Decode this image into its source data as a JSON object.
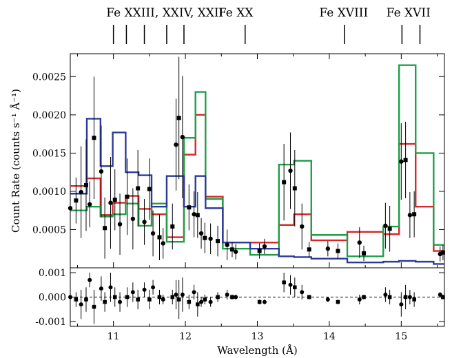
{
  "chart_data": [
    {
      "type": "line",
      "panel": "main",
      "xlabel": "Wavelength (Å)",
      "ylabel": "Count Rate (counts s⁻¹ Å⁻¹)",
      "xlim": [
        10.4,
        15.6
      ],
      "ylim": [
        0.0,
        0.0028
      ],
      "x_ticks": [
        "11",
        "12",
        "13",
        "14",
        "15"
      ],
      "x_tick_values": [
        11,
        12,
        13,
        14,
        15
      ],
      "y_ticks": [
        "0.0005",
        "0.0010",
        "0.0015",
        "0.0020",
        "0.0025"
      ],
      "y_tick_values": [
        0.0005,
        0.001,
        0.0015,
        0.002,
        0.0025
      ],
      "grid": false,
      "line_annotations": {
        "labels": [
          {
            "text": "Fe XXIII, XXIV, XXII",
            "x": 10.9
          },
          {
            "text": "Fe XX",
            "x": 12.7
          },
          {
            "text": "Fe XVIII",
            "x": 14.2
          },
          {
            "text": "Fe XVII",
            "x": 15.1
          }
        ],
        "marker_wavelengths": [
          11.0,
          11.18,
          11.43,
          11.74,
          11.98,
          12.83,
          14.21,
          15.01,
          15.26
        ]
      },
      "series": [
        {
          "color": "#d62728",
          "step_edges": [
            10.4,
            10.63,
            10.82,
            10.99,
            11.17,
            11.35,
            11.53,
            11.74,
            11.98,
            12.14,
            12.28,
            12.52,
            12.9,
            13.3,
            13.51,
            13.75,
            14.25,
            14.75,
            14.97,
            15.2,
            15.45,
            15.6
          ],
          "values": [
            0.00107,
            0.00117,
            0.00069,
            0.00085,
            0.00094,
            0.00077,
            0.0007,
            0.0004,
            0.00148,
            0.002,
            0.00093,
            0.00033,
            0.00033,
            0.00056,
            0.0007,
            0.00036,
            0.00047,
            0.00044,
            0.00162,
            0.0008,
            0.00022
          ]
        },
        {
          "color": "#1f9e48",
          "step_edges": [
            10.4,
            10.63,
            10.82,
            10.99,
            11.17,
            11.35,
            11.53,
            11.74,
            11.98,
            12.14,
            12.28,
            12.52,
            12.9,
            13.3,
            13.51,
            13.75,
            14.25,
            14.75,
            14.97,
            15.2,
            15.45,
            15.6
          ],
          "values": [
            0.00075,
            0.0008,
            0.00067,
            0.0007,
            0.00084,
            0.00055,
            0.00084,
            0.00034,
            0.0017,
            0.0023,
            0.0009,
            0.00025,
            0.00017,
            0.00135,
            0.0014,
            0.00043,
            0.00015,
            0.00054,
            0.00265,
            0.0015,
            0.0003
          ]
        },
        {
          "color": "#2b3a9a",
          "step_edges": [
            10.4,
            10.63,
            10.82,
            10.99,
            11.17,
            11.35,
            11.53,
            11.74,
            11.98,
            12.14,
            12.28,
            12.52,
            12.9,
            13.3,
            13.51,
            13.75,
            14.25,
            14.75,
            14.97,
            15.2,
            15.45,
            15.6
          ],
          "values": [
            0.00097,
            0.00195,
            0.00133,
            0.00177,
            0.00125,
            0.00121,
            0.0008,
            0.0012,
            0.0008,
            0.0012,
            0.00078,
            0.00033,
            0.00025,
            0.00015,
            0.00014,
            0.00012,
            7e-05,
            8e-05,
            9e-05,
            8e-05,
            5e-05
          ]
        }
      ],
      "data_points": {
        "x": [
          10.4,
          10.48,
          10.55,
          10.62,
          10.67,
          10.73,
          10.83,
          10.88,
          10.96,
          11.02,
          11.09,
          11.19,
          11.27,
          11.34,
          11.43,
          11.5,
          11.55,
          11.64,
          11.69,
          11.82,
          11.87,
          11.91,
          11.96,
          12.05,
          12.12,
          12.17,
          12.22,
          12.27,
          12.35,
          12.45,
          12.58,
          12.65,
          12.7,
          13.03,
          13.1,
          13.37,
          13.46,
          13.52,
          13.62,
          13.72,
          13.98,
          14.12,
          14.42,
          14.48,
          14.78,
          14.84,
          15.0,
          15.06,
          15.12,
          15.18,
          15.54,
          15.58
        ],
        "y": [
          0.00078,
          0.00088,
          0.00099,
          0.00108,
          0.00083,
          0.0017,
          0.00126,
          0.00052,
          0.00085,
          0.00089,
          0.00057,
          0.00093,
          0.00064,
          0.00104,
          0.0006,
          0.00103,
          0.00045,
          0.0004,
          0.00032,
          0.00054,
          0.00161,
          0.00196,
          0.00171,
          0.00079,
          0.0007,
          0.00069,
          0.00045,
          0.00039,
          0.00038,
          0.00035,
          0.0003,
          0.00024,
          0.00021,
          0.00022,
          0.00028,
          0.00112,
          0.00127,
          0.00104,
          0.00054,
          0.00024,
          0.00025,
          0.00022,
          0.00033,
          0.00019,
          0.00055,
          0.00051,
          0.00139,
          0.00141,
          0.00069,
          0.0007,
          0.00018,
          0.0002
        ],
        "yerr": [
          0.00025,
          0.0003,
          0.0006,
          0.0006,
          0.0003,
          0.0008,
          0.0006,
          0.0004,
          0.0006,
          0.0004,
          0.0004,
          0.0005,
          0.0004,
          0.0005,
          0.0003,
          0.0004,
          0.0003,
          0.0003,
          0.0002,
          0.0003,
          0.0006,
          0.0008,
          0.0008,
          0.0003,
          0.0003,
          0.0003,
          0.0002,
          0.0002,
          0.0002,
          0.0002,
          0.0002,
          0.0001,
          0.0001,
          0.0001,
          0.0001,
          0.0005,
          0.0005,
          0.0005,
          0.0003,
          0.0001,
          0.0001,
          0.0001,
          0.0002,
          0.0001,
          0.0003,
          0.0003,
          0.0005,
          0.0005,
          0.0003,
          0.0003,
          0.0001,
          0.0001
        ]
      }
    },
    {
      "type": "scatter",
      "panel": "residuals",
      "xlabel": "Wavelength (Å)",
      "xlim": [
        10.4,
        15.6
      ],
      "ylim": [
        -0.0012,
        0.0012
      ],
      "y_ticks": [
        "0.001",
        "0.000",
        "-0.001"
      ],
      "y_tick_values": [
        0.001,
        0.0,
        -0.001
      ],
      "reference_line": 0.0,
      "x": [
        10.4,
        10.48,
        10.55,
        10.62,
        10.67,
        10.73,
        10.83,
        10.88,
        10.96,
        11.02,
        11.09,
        11.19,
        11.27,
        11.34,
        11.43,
        11.5,
        11.55,
        11.64,
        11.69,
        11.82,
        11.87,
        11.91,
        11.96,
        12.05,
        12.12,
        12.17,
        12.22,
        12.27,
        12.35,
        12.45,
        12.58,
        12.65,
        12.7,
        13.03,
        13.1,
        13.37,
        13.46,
        13.52,
        13.62,
        13.72,
        13.98,
        14.12,
        14.42,
        14.48,
        14.78,
        14.84,
        15.0,
        15.06,
        15.12,
        15.18,
        15.54,
        15.58
      ],
      "y": [
        0.0,
        -0.0001,
        -0.0003,
        -0.0001,
        0.0007,
        -0.0004,
        0.00035,
        -0.0002,
        0.0004,
        0.0,
        -0.0002,
        0.0,
        0.0002,
        -0.0001,
        0.0003,
        -0.0001,
        0.0004,
        0.0,
        -0.0001,
        0.0,
        0.0001,
        -0.0001,
        0.0001,
        -0.0002,
        0.0002,
        -0.0003,
        -0.0002,
        -0.0001,
        -0.0002,
        0.0,
        0.0001,
        0.0,
        0.0,
        -0.0002,
        -0.0002,
        0.0006,
        0.0005,
        0.0004,
        0.0002,
        0.0,
        -0.0001,
        -0.0002,
        -0.0001,
        0.0,
        0.0001,
        0.0,
        -0.0003,
        0.0,
        0.0,
        -0.0001,
        0.0001,
        0.0
      ],
      "yerr": [
        0.0003,
        0.0003,
        0.0006,
        0.0005,
        0.0003,
        0.0007,
        0.0005,
        0.0004,
        0.0006,
        0.0004,
        0.0004,
        0.0004,
        0.0004,
        0.0004,
        0.0003,
        0.0004,
        0.0003,
        0.0003,
        0.0002,
        0.0003,
        0.0006,
        0.0008,
        0.0007,
        0.0003,
        0.0003,
        0.0005,
        0.0002,
        0.0002,
        0.0002,
        0.0002,
        0.0002,
        0.0001,
        0.0001,
        0.0001,
        0.0001,
        0.0004,
        0.0004,
        0.0004,
        0.0003,
        0.0001,
        0.0001,
        0.0001,
        0.0002,
        0.0001,
        0.0003,
        0.0003,
        0.0005,
        0.0005,
        0.0003,
        0.0003,
        0.0001,
        0.0001
      ]
    }
  ]
}
